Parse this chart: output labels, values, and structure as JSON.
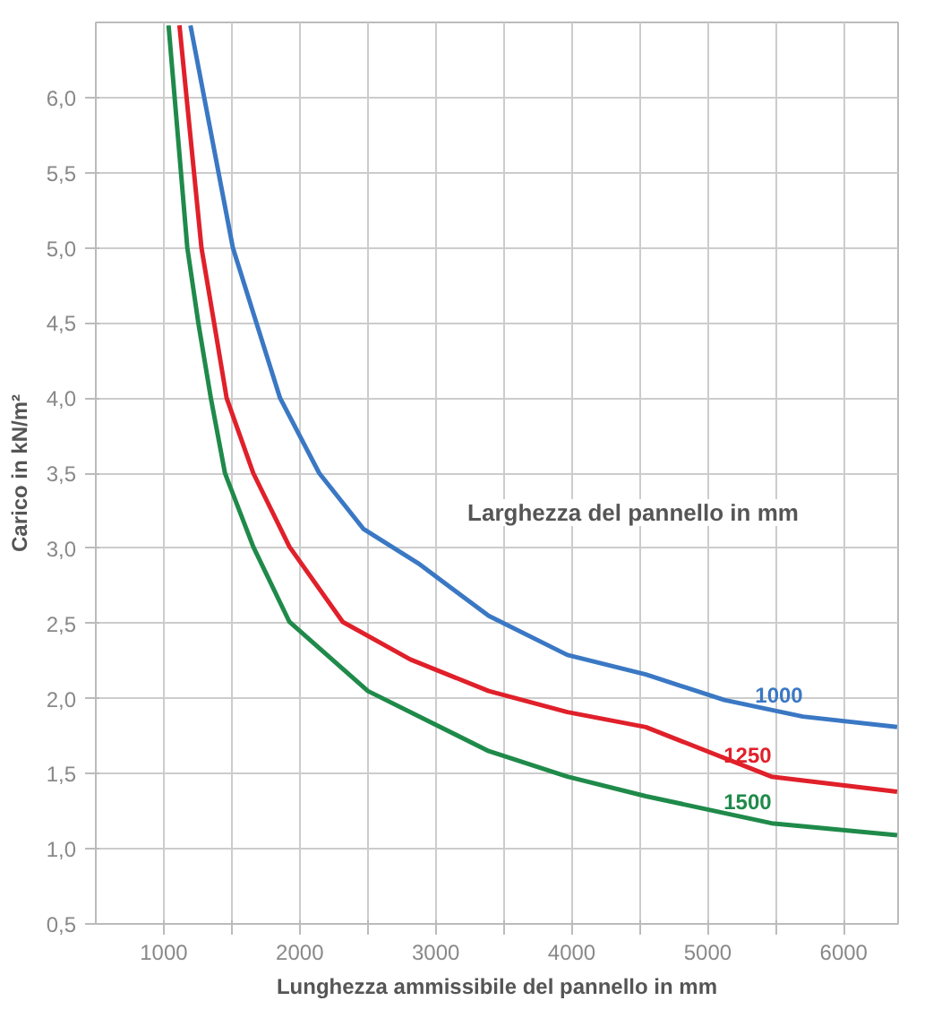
{
  "chart_data": {
    "type": "line",
    "xlabel": "Lunghezza ammissibile del pannello in mm",
    "ylabel": "Carico in kN/m²",
    "annotations": [
      "Larghezza del pannello in mm"
    ],
    "xlim": [
      500,
      6400
    ],
    "ylim": [
      0.5,
      6.5
    ],
    "xticks": [
      1000,
      {
        "value": 1500,
        "label": null
      },
      2000,
      {
        "value": 2500,
        "label": null
      },
      3000,
      {
        "value": 3500,
        "label": null
      },
      4000,
      {
        "value": 4500,
        "label": null
      },
      5000,
      {
        "value": 5500,
        "label": null
      },
      6000
    ],
    "yticks": [
      {
        "value": 0.5,
        "label": "0,5"
      },
      {
        "value": 1.0,
        "label": "1,0"
      },
      {
        "value": 1.5,
        "label": "1,5"
      },
      {
        "value": 2.0,
        "label": "2,0"
      },
      {
        "value": 2.5,
        "label": "2,5"
      },
      {
        "value": 3.0,
        "label": "3,0"
      },
      {
        "value": 3.5,
        "label": "3,5"
      },
      {
        "value": 4.0,
        "label": "4,0"
      },
      {
        "value": 4.5,
        "label": "4,5"
      },
      {
        "value": 5.0,
        "label": "5,0"
      },
      {
        "value": 5.5,
        "label": "5,5"
      },
      {
        "value": 6.0,
        "label": "6,0"
      }
    ],
    "grid": true,
    "marker": "none",
    "line_style": "solid",
    "series": [
      {
        "name": "1000",
        "color": "#3a78c4",
        "x": [
          1196,
          1508,
          1681,
          1855,
          2143,
          2467,
          2871,
          3390,
          3968,
          4545,
          5122,
          5700,
          6393
        ],
        "values": [
          6.48,
          5.0,
          4.5,
          4.0,
          3.5,
          3.13,
          2.9,
          2.55,
          2.29,
          2.16,
          1.99,
          1.88,
          1.81
        ]
      },
      {
        "name": "1250",
        "color": "#e0202a",
        "x": [
          1115,
          1277,
          1370,
          1462,
          1658,
          1924,
          2316,
          2813,
          3390,
          3968,
          4545,
          5469,
          6393
        ],
        "values": [
          6.48,
          5.0,
          4.5,
          4.0,
          3.5,
          3.01,
          2.51,
          2.26,
          2.05,
          1.91,
          1.81,
          1.48,
          1.38
        ]
      },
      {
        "name": "1500",
        "color": "#1f8a4a",
        "x": [
          1035,
          1173,
          1254,
          1346,
          1450,
          1658,
          1924,
          2501,
          3390,
          3968,
          4545,
          5469,
          6393
        ],
        "values": [
          6.48,
          5.0,
          4.5,
          4.0,
          3.5,
          3.01,
          2.51,
          2.05,
          1.65,
          1.48,
          1.35,
          1.17,
          1.09
        ]
      }
    ]
  }
}
